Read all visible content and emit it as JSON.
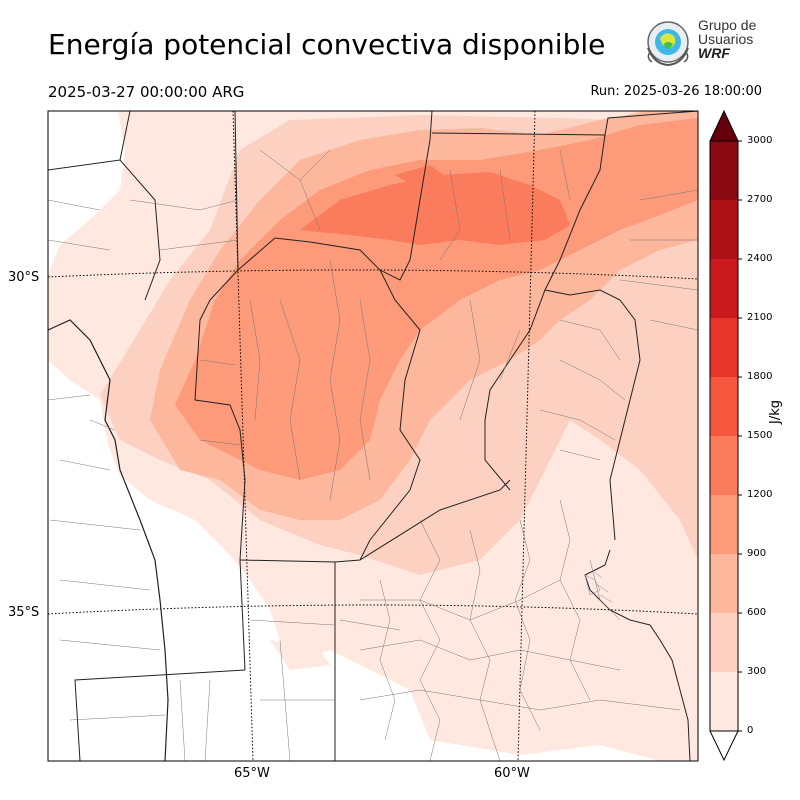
{
  "header": {
    "title": "Energía potencial convectiva disponible",
    "valid_time": "2025-03-27 00:00:00 ARG",
    "run_time": "Run: 2025-03-26 18:00:00"
  },
  "logo": {
    "line1": "Grupo de",
    "line2": "Usuarios",
    "line3": "WRF"
  },
  "map": {
    "lat_labels": [
      "30°S",
      "35°S"
    ],
    "lon_labels": [
      "65°W",
      "60°W"
    ]
  },
  "colorbar": {
    "unit": "J/kg",
    "levels": [
      0,
      300,
      600,
      900,
      1200,
      1500,
      1800,
      2100,
      2400,
      2700,
      3000
    ],
    "tick_labels": [
      "0",
      "300",
      "600",
      "900",
      "1200",
      "1500",
      "1800",
      "2100",
      "2400",
      "2700",
      "3000"
    ],
    "colors": [
      "#fee8df",
      "#fcd1c1",
      "#fcb79d",
      "#fc9a7a",
      "#fb7c5c",
      "#f5573f",
      "#e8352b",
      "#cb1a1d",
      "#ad1116",
      "#8a0912"
    ],
    "extend_color_low": "#ffffff",
    "extend_color_high": "#67000d"
  }
}
